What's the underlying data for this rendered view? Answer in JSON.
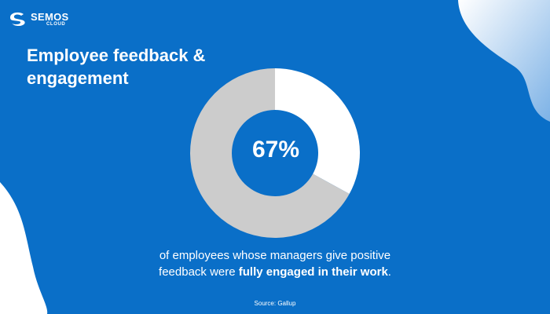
{
  "brand": {
    "name": "SEMOS",
    "sub": "CLOUD",
    "icon": "semos-logo-icon"
  },
  "colors": {
    "background": "#0a6fc8",
    "highlight": "#ffffff",
    "remainder": "#cccccc",
    "blob": "#ffffff"
  },
  "caption": {
    "line1": "of employees whose managers give positive",
    "line2_prefix": "feedback were ",
    "line2_bold": "fully engaged in their work",
    "line2_suffix": "."
  },
  "source": "Source: Gallup",
  "chart_data": {
    "type": "pie",
    "title": "Employee feedback & engagement",
    "title_lines": [
      "Employee feedback &",
      "engagement"
    ],
    "center_label": "67%",
    "slices": [
      {
        "value": 33,
        "color": "#ffffff"
      },
      {
        "value": 67,
        "color": "#cccccc"
      }
    ]
  }
}
